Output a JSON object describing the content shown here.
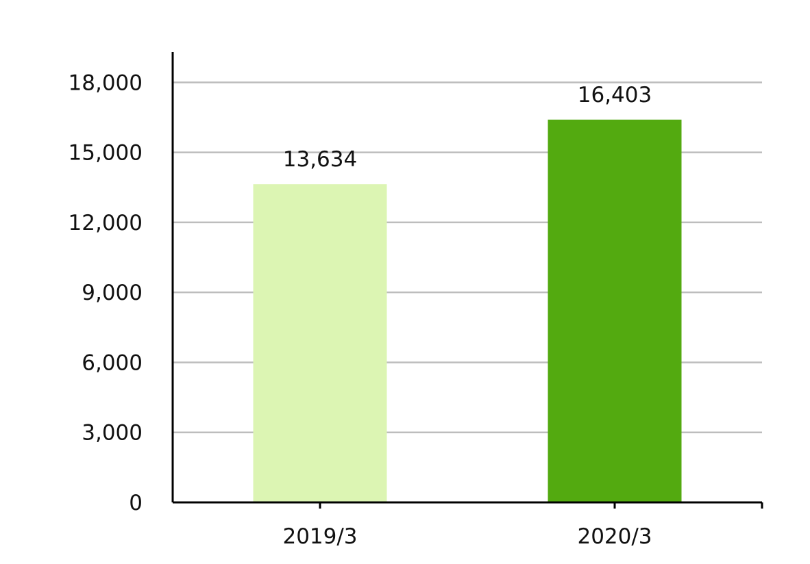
{
  "chart_data": {
    "type": "bar",
    "title": "",
    "xlabel": "",
    "ylabel": "",
    "categories": [
      "2019/3",
      "2020/3"
    ],
    "values": [
      13634,
      16403
    ],
    "value_labels": [
      "13,634",
      "16,403"
    ],
    "colors": [
      "#dcf5b3",
      "#53aa10"
    ],
    "ylim": [
      0,
      19300
    ],
    "yticks": [
      0,
      3000,
      6000,
      9000,
      12000,
      15000,
      18000
    ],
    "ytick_labels": [
      "0",
      "3,000",
      "6,000",
      "9,000",
      "12,000",
      "15,000",
      "18,000"
    ],
    "grid": true,
    "legend": "none"
  }
}
